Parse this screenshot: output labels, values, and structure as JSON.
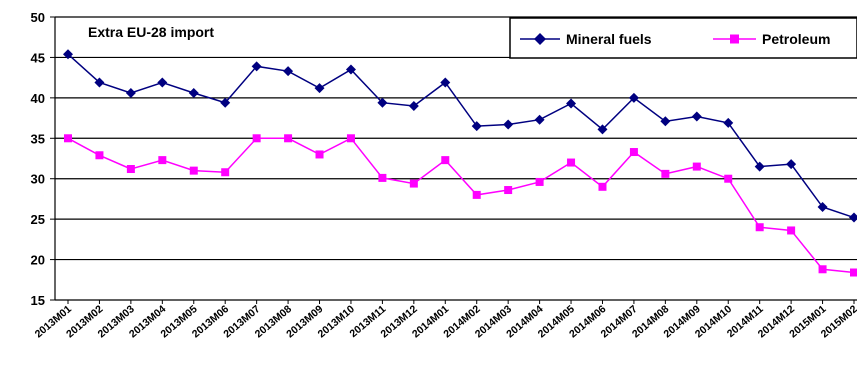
{
  "chart_data": {
    "type": "line",
    "title": "Extra EU-28 import",
    "xlabel": "",
    "ylabel": "",
    "ylim": [
      15,
      50
    ],
    "yticks": [
      15,
      20,
      25,
      30,
      35,
      40,
      45,
      50
    ],
    "grid": true,
    "legend_position": "top-right",
    "categories": [
      "2013M01",
      "2013M02",
      "2013M03",
      "2013M04",
      "2013M05",
      "2013M06",
      "2013M07",
      "2013M08",
      "2013M09",
      "2013M10",
      "2013M11",
      "2013M12",
      "2014M01",
      "2014M02",
      "2014M03",
      "2014M04",
      "2014M05",
      "2014M06",
      "2014M07",
      "2014M08",
      "2014M09",
      "2014M10",
      "2014M11",
      "2014M12",
      "2015M01",
      "2015M02"
    ],
    "series": [
      {
        "name": "Mineral fuels",
        "color": "#000080",
        "marker": "diamond",
        "values": [
          45.4,
          41.9,
          40.6,
          41.9,
          40.6,
          39.4,
          43.9,
          43.3,
          41.2,
          43.5,
          39.4,
          39.0,
          41.9,
          36.5,
          36.7,
          37.3,
          39.3,
          36.1,
          40.0,
          37.1,
          37.7,
          36.9,
          31.5,
          31.8,
          26.5,
          25.2
        ]
      },
      {
        "name": "Petroleum",
        "color": "#ff00ff",
        "marker": "square",
        "values": [
          35.0,
          32.9,
          31.2,
          32.3,
          31.0,
          30.8,
          35.0,
          35.0,
          33.0,
          35.0,
          30.1,
          29.4,
          32.3,
          28.0,
          28.6,
          29.6,
          32.0,
          29.0,
          33.3,
          30.6,
          31.5,
          30.0,
          24.0,
          23.6,
          18.8,
          18.4
        ]
      }
    ]
  }
}
